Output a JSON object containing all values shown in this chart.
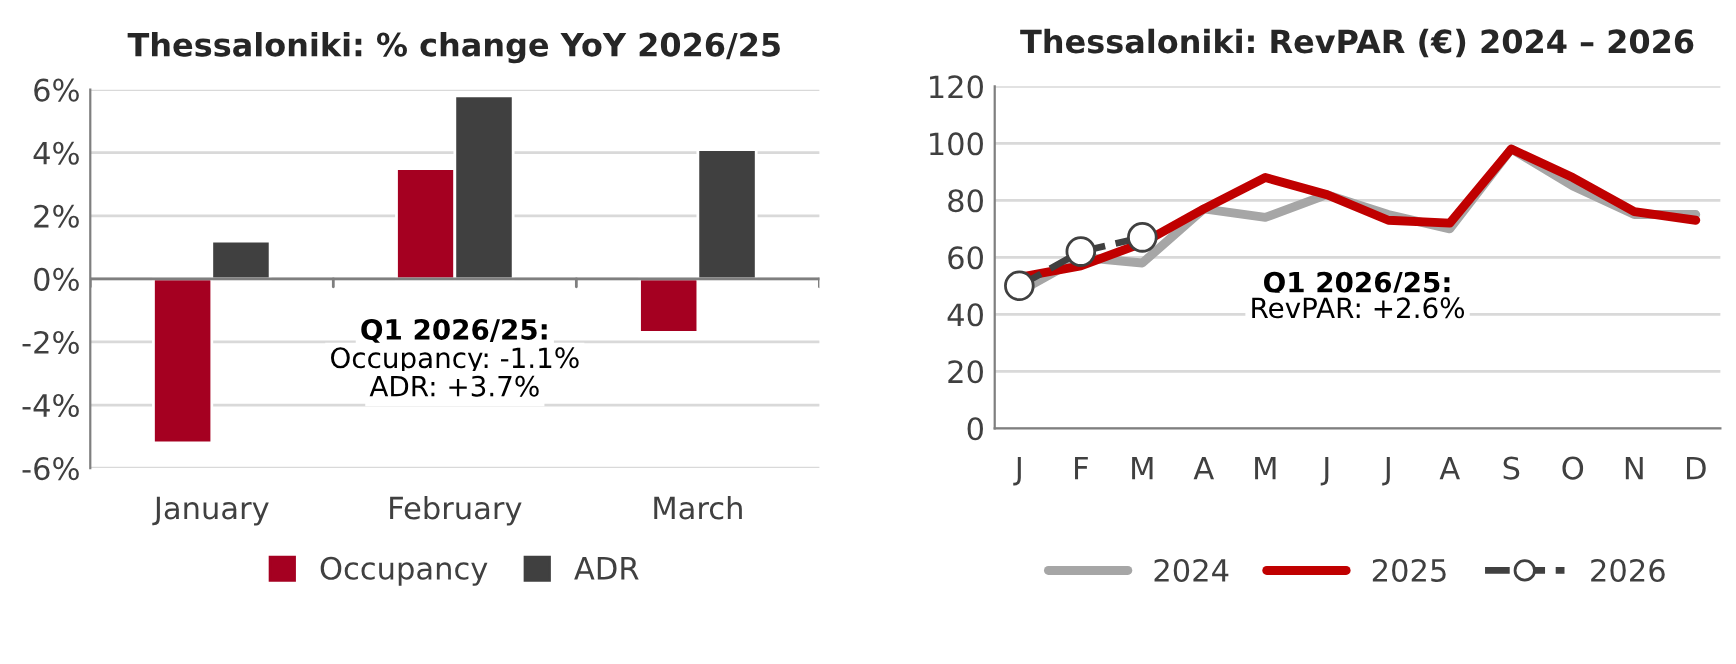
{
  "chart_data": [
    {
      "type": "bar",
      "title": "Thessaloniki: % change YoY 2026/25",
      "categories": [
        "January",
        "February",
        "March"
      ],
      "series": [
        {
          "name": "Occupancy",
          "color": "#a50021",
          "values": [
            -5.2,
            3.5,
            -1.7
          ]
        },
        {
          "name": "ADR",
          "color": "#404040",
          "values": [
            1.2,
            5.8,
            4.1
          ]
        }
      ],
      "ylim": [
        -6,
        6
      ],
      "yticks": [
        {
          "value": -6,
          "label": "-6%"
        },
        {
          "value": -4,
          "label": "-4%"
        },
        {
          "value": -2,
          "label": "-2%"
        },
        {
          "value": 0,
          "label": "0%"
        },
        {
          "value": 2,
          "label": "2%"
        },
        {
          "value": 4,
          "label": "4%"
        },
        {
          "value": 6,
          "label": "6%"
        }
      ],
      "grid": "y",
      "legend": "bottom",
      "annotations": [
        "Q1 2026/25:",
        "Occupancy: -1.1%",
        "ADR: +3.7%"
      ]
    },
    {
      "type": "line",
      "title": "Thessaloniki: RevPAR (€) 2024 – 2026",
      "categories": [
        "J",
        "F",
        "M",
        "A",
        "M",
        "J",
        "J",
        "A",
        "S",
        "O",
        "N",
        "D"
      ],
      "series": [
        {
          "name": "2024",
          "color": "#a6a6a6",
          "values": [
            48,
            60,
            58,
            77,
            74,
            82,
            75,
            70,
            98,
            85,
            75,
            75
          ]
        },
        {
          "name": "2025",
          "color": "#c00000",
          "values": [
            53,
            57,
            65,
            77,
            88,
            82,
            73,
            72,
            98,
            88,
            76,
            73
          ]
        },
        {
          "name": "2026",
          "color": "#404040",
          "values": [
            50,
            62,
            67,
            null,
            null,
            null,
            null,
            null,
            null,
            null,
            null,
            null
          ],
          "marker": "circle",
          "line_style": "dashed"
        }
      ],
      "ylim": [
        0,
        120
      ],
      "yticks": [
        0,
        20,
        40,
        60,
        80,
        100,
        120
      ],
      "grid": "y",
      "legend": "bottom",
      "annotations": [
        "Q1 2026/25:",
        "RevPAR: +2.6%"
      ]
    }
  ]
}
